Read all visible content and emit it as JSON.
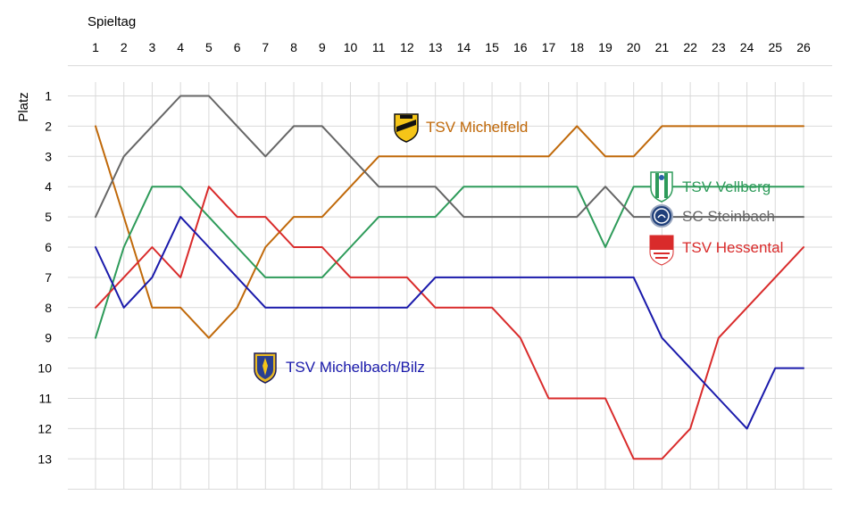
{
  "chart_data": {
    "type": "line",
    "title": "",
    "xlabel": "Spieltag",
    "ylabel": "Platz",
    "x": [
      1,
      2,
      3,
      4,
      5,
      6,
      7,
      8,
      9,
      10,
      11,
      12,
      13,
      14,
      15,
      16,
      17,
      18,
      19,
      20,
      21,
      22,
      23,
      24,
      25,
      26
    ],
    "xlim": [
      1,
      26
    ],
    "ylim": [
      1,
      13
    ],
    "y_inverted": true,
    "y_ticks": [
      1,
      2,
      3,
      4,
      5,
      6,
      7,
      8,
      9,
      10,
      11,
      12,
      13
    ],
    "grid": true,
    "legend": "none",
    "series": [
      {
        "name": "TSV Michelfeld",
        "color": "#C0690A",
        "icon": "tsv-michelfeld-crest-icon",
        "values": [
          2,
          5,
          8,
          8,
          9,
          8,
          6,
          5,
          5,
          4,
          3,
          3,
          3,
          3,
          3,
          3,
          3,
          2,
          3,
          3,
          2,
          2,
          2,
          2,
          2,
          2
        ]
      },
      {
        "name": "TSV Vellberg",
        "color": "#2E9B5A",
        "icon": "tsv-vellberg-crest-icon",
        "values": [
          9,
          6,
          4,
          4,
          5,
          6,
          7,
          7,
          7,
          6,
          5,
          5,
          5,
          4,
          4,
          4,
          4,
          4,
          6,
          4,
          4,
          4,
          4,
          4,
          4,
          4
        ]
      },
      {
        "name": "SC Steinbach",
        "color": "#666666",
        "icon": "sc-steinbach-crest-icon",
        "values": [
          5,
          3,
          2,
          1,
          1,
          2,
          3,
          2,
          2,
          3,
          4,
          4,
          4,
          5,
          5,
          5,
          5,
          5,
          4,
          5,
          5,
          5,
          5,
          5,
          5,
          5
        ]
      },
      {
        "name": "TSV Hessental",
        "color": "#D92B2B",
        "icon": "tsv-hessental-crest-icon",
        "values": [
          8,
          7,
          6,
          7,
          4,
          5,
          5,
          6,
          6,
          7,
          7,
          7,
          8,
          8,
          8,
          9,
          11,
          11,
          11,
          13,
          13,
          12,
          9,
          8,
          7,
          6
        ]
      },
      {
        "name": "TSV Michelbach/Bilz",
        "color": "#1A1AAB",
        "icon": "tsv-michelbach-crest-icon",
        "values": [
          6,
          8,
          7,
          5,
          6,
          7,
          8,
          8,
          8,
          8,
          8,
          8,
          7,
          7,
          7,
          7,
          7,
          7,
          7,
          7,
          9,
          10,
          11,
          12,
          10,
          10
        ]
      }
    ]
  }
}
